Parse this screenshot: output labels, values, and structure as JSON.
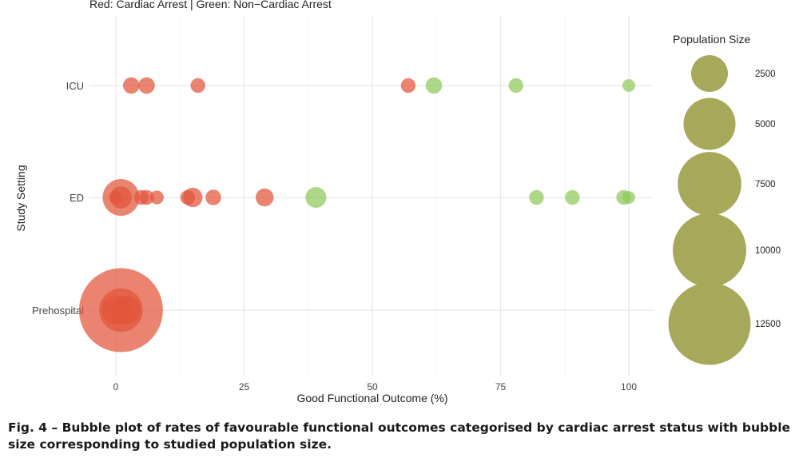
{
  "figure": {
    "subtitle": "Red: Cardiac Arrest | Green: Non−Cardiac Arrest",
    "caption": "Fig. 4 – Bubble plot of rates of favourable functional outcomes categorised by cardiac arrest status with bubble size corresponding to studied population size."
  },
  "chart_data": {
    "type": "scatter",
    "subtitle": "Red: Cardiac Arrest | Green: Non−Cardiac Arrest",
    "xlabel": "Good Functional Outcome (%)",
    "ylabel": "Study Setting",
    "xlim": [
      0,
      100
    ],
    "x_ticks": [
      0,
      25,
      50,
      75,
      100
    ],
    "y_categories": [
      "ICU",
      "ED",
      "Prehospital"
    ],
    "grid": true,
    "legend": {
      "title": "Population Size",
      "position": "right",
      "entries": [
        2500,
        5000,
        7500,
        10000,
        12500
      ]
    },
    "colors": {
      "cardiac_arrest": "#e2553a",
      "non_cardiac_arrest": "#8ec95a",
      "legend_bubble": "#a8a85a"
    },
    "series": [
      {
        "group": "cardiac_arrest",
        "points": [
          {
            "y": "ICU",
            "x": 3,
            "size": 500
          },
          {
            "y": "ICU",
            "x": 6,
            "size": 500
          },
          {
            "y": "ICU",
            "x": 16,
            "size": 400
          },
          {
            "y": "ICU",
            "x": 57,
            "size": 400
          },
          {
            "y": "ED",
            "x": 1,
            "size": 2500
          },
          {
            "y": "ED",
            "x": 1,
            "size": 900
          },
          {
            "y": "ED",
            "x": 0,
            "size": 300
          },
          {
            "y": "ED",
            "x": 5,
            "size": 400
          },
          {
            "y": "ED",
            "x": 6,
            "size": 400
          },
          {
            "y": "ED",
            "x": 8,
            "size": 350
          },
          {
            "y": "ED",
            "x": 15,
            "size": 700
          },
          {
            "y": "ED",
            "x": 14,
            "size": 400
          },
          {
            "y": "ED",
            "x": 19,
            "size": 450
          },
          {
            "y": "ED",
            "x": 29,
            "size": 600
          },
          {
            "y": "Prehospital",
            "x": 1,
            "size": 13000
          },
          {
            "y": "Prehospital",
            "x": 1,
            "size": 3500
          },
          {
            "y": "Prehospital",
            "x": 0,
            "size": 1500
          },
          {
            "y": "Prehospital",
            "x": 2,
            "size": 1500
          }
        ]
      },
      {
        "group": "non_cardiac_arrest",
        "points": [
          {
            "y": "ICU",
            "x": 62,
            "size": 500
          },
          {
            "y": "ICU",
            "x": 78,
            "size": 400
          },
          {
            "y": "ICU",
            "x": 100,
            "size": 300
          },
          {
            "y": "ED",
            "x": 39,
            "size": 800
          },
          {
            "y": "ED",
            "x": 82,
            "size": 400
          },
          {
            "y": "ED",
            "x": 89,
            "size": 400
          },
          {
            "y": "ED",
            "x": 99,
            "size": 400
          },
          {
            "y": "ED",
            "x": 100,
            "size": 300
          }
        ]
      }
    ]
  }
}
